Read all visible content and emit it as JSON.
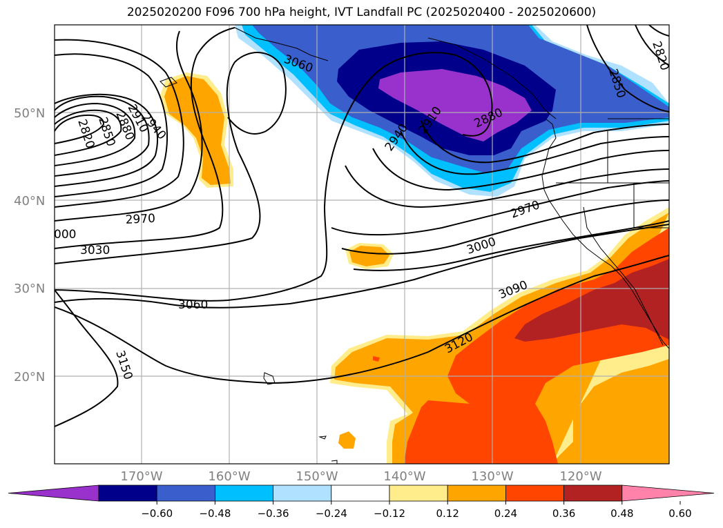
{
  "title": "2025020200 F096 700 hPa height, IVT Landfall PC (2025020400 - 2025020600)",
  "map": {
    "lat_labels": [
      "50°N",
      "40°N",
      "30°N",
      "20°N"
    ],
    "lon_labels": [
      "170°W",
      "160°W",
      "150°W",
      "140°W",
      "130°W",
      "120°W"
    ],
    "contour_labels": [
      "3060",
      "2820",
      "2850",
      "2880",
      "2910",
      "2940",
      "2970",
      "3030",
      "000",
      "3060",
      "3150",
      "2940",
      "2910",
      "2880",
      "2850",
      "2820",
      "2970",
      "3000",
      "3090",
      "3120"
    ]
  },
  "colorbar": {
    "ticks": [
      "−0.60",
      "−0.48",
      "−0.36",
      "−0.24",
      "−0.12",
      "0.12",
      "0.24",
      "0.36",
      "0.48",
      "0.60"
    ],
    "colors": [
      "#9932cc",
      "#00008b",
      "#3a5fcd",
      "#00bfff",
      "#b0e2ff",
      "#ffffff",
      "#ffec8b",
      "#ffa500",
      "#ff4500",
      "#b22222",
      "#ff82ab"
    ]
  }
}
